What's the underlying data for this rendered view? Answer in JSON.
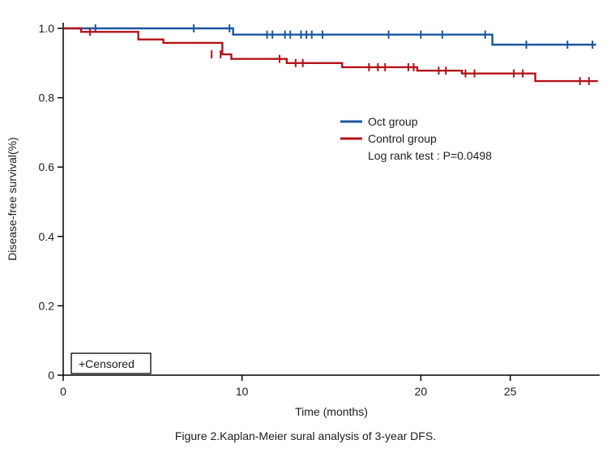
{
  "caption": "Figure 2.Kaplan-Meier sural analysis of 3-year DFS.",
  "chart_data": {
    "type": "line",
    "subtype": "kaplan-meier-step",
    "title": "",
    "xlabel": "Time (months)",
    "ylabel": "Disease-free survival(%)",
    "xlim": [
      0,
      30
    ],
    "x_ticks": [
      0,
      10,
      20,
      25
    ],
    "x_tick_labels": [
      "0",
      "10",
      "20",
      "25"
    ],
    "ylim": [
      0,
      1.0
    ],
    "y_ticks": [
      1.0,
      0.8,
      0.6,
      0.4,
      0.2,
      0
    ],
    "y_tick_labels": [
      "1.0",
      "0.8",
      "0.6",
      "0.4",
      "0.2",
      "0"
    ],
    "grid": false,
    "legend_position": "upper-center-right",
    "annotation": "Log rank test : P=0.0498",
    "censored_box_label": "+Censored",
    "axis_color": "#000000",
    "series": [
      {
        "name": "Oct group",
        "color": "#1a56a0",
        "steps": [
          [
            0,
            1.0
          ],
          [
            9.5,
            0.982
          ],
          [
            24.0,
            0.953
          ],
          [
            29.8,
            0.953
          ]
        ],
        "censored": [
          [
            1.8,
            1.0
          ],
          [
            7.3,
            1.0
          ],
          [
            9.3,
            1.0
          ],
          [
            11.4,
            0.982
          ],
          [
            11.7,
            0.982
          ],
          [
            12.4,
            0.982
          ],
          [
            12.7,
            0.982
          ],
          [
            13.3,
            0.982
          ],
          [
            13.6,
            0.982
          ],
          [
            13.9,
            0.982
          ],
          [
            14.5,
            0.982
          ],
          [
            18.2,
            0.982
          ],
          [
            20.0,
            0.982
          ],
          [
            21.2,
            0.982
          ],
          [
            23.6,
            0.982
          ],
          [
            25.9,
            0.953
          ],
          [
            28.2,
            0.953
          ],
          [
            29.6,
            0.953
          ]
        ]
      },
      {
        "name": "Control group",
        "color": "#b3121b",
        "steps": [
          [
            0,
            1.0
          ],
          [
            1.0,
            0.99
          ],
          [
            4.2,
            0.968
          ],
          [
            5.6,
            0.958
          ],
          [
            8.9,
            0.925
          ],
          [
            9.4,
            0.912
          ],
          [
            12.5,
            0.9
          ],
          [
            15.6,
            0.888
          ],
          [
            19.8,
            0.878
          ],
          [
            22.3,
            0.87
          ],
          [
            26.4,
            0.848
          ],
          [
            29.9,
            0.848
          ]
        ],
        "censored": [
          [
            1.5,
            0.99
          ],
          [
            8.3,
            0.925
          ],
          [
            8.8,
            0.925
          ],
          [
            12.1,
            0.912
          ],
          [
            13.0,
            0.9
          ],
          [
            13.4,
            0.9
          ],
          [
            17.1,
            0.888
          ],
          [
            17.6,
            0.888
          ],
          [
            18.0,
            0.888
          ],
          [
            19.3,
            0.888
          ],
          [
            19.6,
            0.888
          ],
          [
            21.0,
            0.878
          ],
          [
            21.4,
            0.878
          ],
          [
            22.5,
            0.87
          ],
          [
            23.0,
            0.87
          ],
          [
            25.2,
            0.87
          ],
          [
            25.7,
            0.87
          ],
          [
            28.9,
            0.848
          ],
          [
            29.4,
            0.848
          ]
        ]
      }
    ]
  }
}
